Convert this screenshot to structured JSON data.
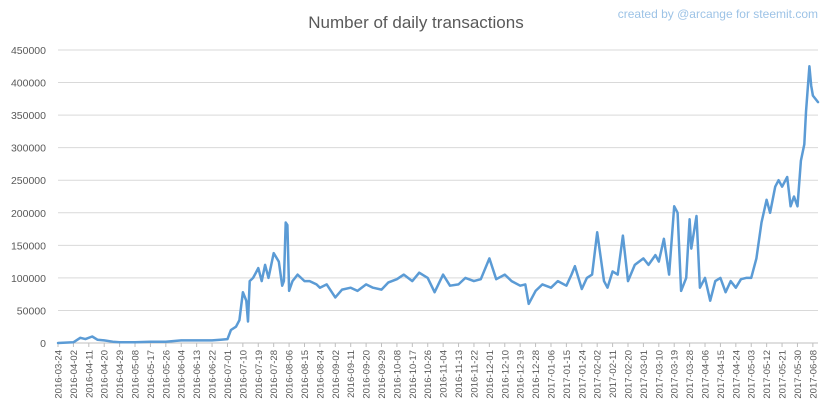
{
  "credit": "created by @arcange for steemit.com",
  "colors": {
    "series": "#5b9bd5",
    "grid": "#d9d9d9",
    "text": "#595959",
    "credit": "#9dc3e6"
  },
  "chart_data": {
    "type": "line",
    "title": "Number of daily transactions",
    "xlabel": "",
    "ylabel": "",
    "ylim": [
      0,
      450000
    ],
    "yticks": [
      0,
      50000,
      100000,
      150000,
      200000,
      250000,
      300000,
      350000,
      400000,
      450000
    ],
    "grid": true,
    "legend": "none",
    "x_tick_labels": [
      "2016-03-24",
      "2016-04-02",
      "2016-04-11",
      "2016-04-20",
      "2016-04-29",
      "2016-05-08",
      "2016-05-17",
      "2016-05-26",
      "2016-06-04",
      "2016-06-13",
      "2016-06-22",
      "2016-07-01",
      "2016-07-10",
      "2016-07-19",
      "2016-07-28",
      "2016-08-06",
      "2016-08-15",
      "2016-08-24",
      "2016-09-02",
      "2016-09-11",
      "2016-09-20",
      "2016-09-29",
      "2016-10-08",
      "2016-10-17",
      "2016-10-26",
      "2016-11-04",
      "2016-11-13",
      "2016-11-22",
      "2016-12-01",
      "2016-12-10",
      "2016-12-19",
      "2016-12-28",
      "2017-01-06",
      "2017-01-15",
      "2017-01-24",
      "2017-02-02",
      "2017-02-11",
      "2017-02-20",
      "2017-03-01",
      "2017-03-10",
      "2017-03-19",
      "2017-03-28",
      "2017-04-06",
      "2017-04-15",
      "2017-04-24",
      "2017-05-03",
      "2017-05-12",
      "2017-05-21",
      "2017-05-30",
      "2017-06-08"
    ],
    "series": [
      {
        "name": "",
        "x": [
          "2016-03-24",
          "2016-04-02",
          "2016-04-06",
          "2016-04-09",
          "2016-04-13",
          "2016-04-16",
          "2016-04-20",
          "2016-04-25",
          "2016-04-29",
          "2016-05-08",
          "2016-05-17",
          "2016-05-26",
          "2016-06-04",
          "2016-06-13",
          "2016-06-22",
          "2016-06-27",
          "2016-07-01",
          "2016-07-03",
          "2016-07-06",
          "2016-07-08",
          "2016-07-10",
          "2016-07-12",
          "2016-07-13",
          "2016-07-14",
          "2016-07-16",
          "2016-07-18",
          "2016-07-19",
          "2016-07-21",
          "2016-07-23",
          "2016-07-25",
          "2016-07-28",
          "2016-07-31",
          "2016-08-02",
          "2016-08-03",
          "2016-08-04",
          "2016-08-05",
          "2016-08-06",
          "2016-08-08",
          "2016-08-11",
          "2016-08-15",
          "2016-08-18",
          "2016-08-22",
          "2016-08-24",
          "2016-08-28",
          "2016-09-02",
          "2016-09-06",
          "2016-09-11",
          "2016-09-15",
          "2016-09-20",
          "2016-09-24",
          "2016-09-29",
          "2016-10-03",
          "2016-10-08",
          "2016-10-12",
          "2016-10-17",
          "2016-10-21",
          "2016-10-26",
          "2016-10-30",
          "2016-11-04",
          "2016-11-08",
          "2016-11-13",
          "2016-11-17",
          "2016-11-22",
          "2016-11-26",
          "2016-12-01",
          "2016-12-05",
          "2016-12-10",
          "2016-12-14",
          "2016-12-19",
          "2016-12-22",
          "2016-12-24",
          "2016-12-28",
          "2017-01-01",
          "2017-01-06",
          "2017-01-10",
          "2017-01-15",
          "2017-01-18",
          "2017-01-20",
          "2017-01-24",
          "2017-01-27",
          "2017-01-30",
          "2017-02-02",
          "2017-02-06",
          "2017-02-08",
          "2017-02-11",
          "2017-02-14",
          "2017-02-17",
          "2017-02-20",
          "2017-02-24",
          "2017-03-01",
          "2017-03-04",
          "2017-03-08",
          "2017-03-10",
          "2017-03-13",
          "2017-03-16",
          "2017-03-19",
          "2017-03-21",
          "2017-03-23",
          "2017-03-26",
          "2017-03-28",
          "2017-03-29",
          "2017-04-01",
          "2017-04-03",
          "2017-04-06",
          "2017-04-09",
          "2017-04-12",
          "2017-04-15",
          "2017-04-18",
          "2017-04-21",
          "2017-04-24",
          "2017-04-27",
          "2017-04-30",
          "2017-05-03",
          "2017-05-06",
          "2017-05-09",
          "2017-05-12",
          "2017-05-14",
          "2017-05-17",
          "2017-05-19",
          "2017-05-21",
          "2017-05-24",
          "2017-05-26",
          "2017-05-28",
          "2017-05-30",
          "2017-06-01",
          "2017-06-03",
          "2017-06-04",
          "2017-06-06",
          "2017-06-07",
          "2017-06-08",
          "2017-06-11"
        ],
        "y": [
          0,
          1000,
          8000,
          6000,
          10000,
          5000,
          4000,
          2000,
          1000,
          1000,
          2000,
          2000,
          4000,
          4000,
          4000,
          5000,
          6000,
          20000,
          25000,
          35000,
          78000,
          65000,
          33000,
          95000,
          100000,
          110000,
          115000,
          95000,
          120000,
          100000,
          138000,
          125000,
          88000,
          95000,
          185000,
          181000,
          80000,
          95000,
          105000,
          95000,
          95000,
          90000,
          85000,
          90000,
          70000,
          82000,
          85000,
          80000,
          90000,
          85000,
          82000,
          93000,
          98000,
          105000,
          95000,
          108000,
          100000,
          78000,
          105000,
          88000,
          90000,
          100000,
          95000,
          98000,
          130000,
          98000,
          105000,
          95000,
          88000,
          90000,
          60000,
          80000,
          90000,
          85000,
          95000,
          88000,
          105000,
          118000,
          83000,
          100000,
          105000,
          170000,
          95000,
          85000,
          110000,
          105000,
          165000,
          95000,
          120000,
          130000,
          120000,
          135000,
          125000,
          160000,
          105000,
          210000,
          200000,
          80000,
          100000,
          190000,
          145000,
          195000,
          85000,
          100000,
          65000,
          95000,
          100000,
          78000,
          95000,
          85000,
          98000,
          100000,
          100000,
          130000,
          185000,
          220000,
          200000,
          240000,
          250000,
          240000,
          255000,
          210000,
          225000,
          210000,
          280000,
          305000,
          355000,
          425000,
          395000,
          380000,
          370000
        ]
      }
    ]
  }
}
